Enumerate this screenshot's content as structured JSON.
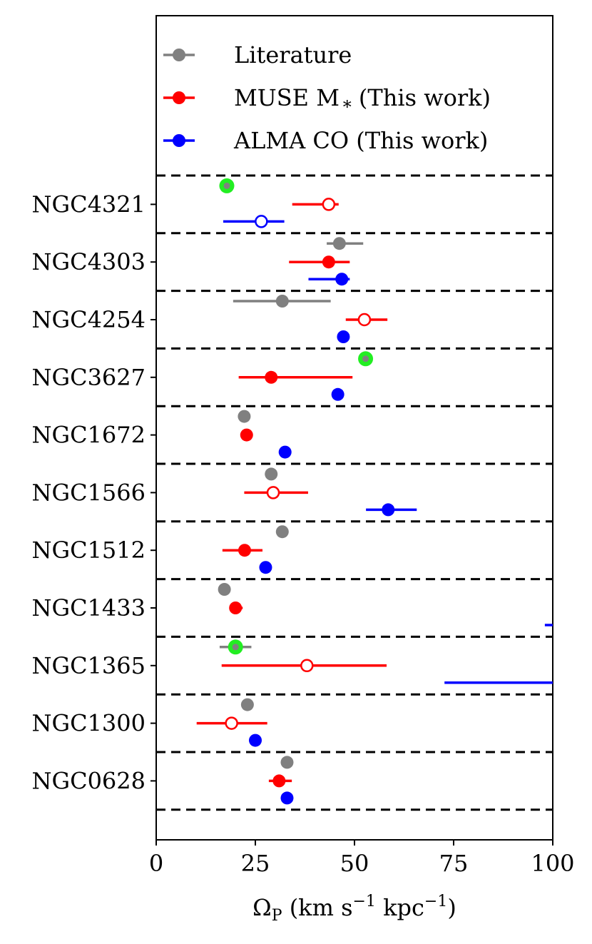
{
  "chart_data": {
    "type": "scatter",
    "xlabel": "Ω_P (km s^-1 kpc^-1)",
    "xlabel_parts": {
      "omega": "Ω",
      "sub": "P",
      "unit_a": "(km s",
      "exp1": "−1",
      "unit_b": " kpc",
      "exp2": "−1",
      "close": ")"
    },
    "xlim": [
      0,
      100
    ],
    "xticks": [
      0,
      25,
      50,
      75,
      100
    ],
    "xtick_labels": [
      "0",
      "25",
      "50",
      "75",
      "100"
    ],
    "galaxies": [
      "NGC4321",
      "NGC4303",
      "NGC4254",
      "NGC3627",
      "NGC1672",
      "NGC1566",
      "NGC1512",
      "NGC1433",
      "NGC1365",
      "NGC1300",
      "NGC0628"
    ],
    "legend_placement": "top",
    "series": [
      {
        "name": "Literature",
        "color": "#808080",
        "points": [
          {
            "galaxy": "NGC4321",
            "x": 17.8,
            "err": [
              0,
              0
            ],
            "filled": true,
            "highlight": true
          },
          {
            "galaxy": "NGC4303",
            "x": 46.2,
            "err": [
              3.2,
              6.0
            ],
            "filled": true
          },
          {
            "galaxy": "NGC4254",
            "x": 31.8,
            "err": [
              12.4,
              12.2
            ],
            "filled": true
          },
          {
            "galaxy": "NGC3627",
            "x": 52.8,
            "err": [
              0,
              0
            ],
            "filled": true,
            "highlight": true
          },
          {
            "galaxy": "NGC1672",
            "x": 22.2,
            "err": [
              0,
              0
            ],
            "filled": true
          },
          {
            "galaxy": "NGC1566",
            "x": 29.0,
            "err": [
              0,
              0
            ],
            "filled": true
          },
          {
            "galaxy": "NGC1512",
            "x": 31.8,
            "err": [
              0,
              0
            ],
            "filled": true
          },
          {
            "galaxy": "NGC1433",
            "x": 17.2,
            "err": [
              0,
              0
            ],
            "filled": true
          },
          {
            "galaxy": "NGC1365",
            "x": 20.0,
            "err": [
              4.0,
              4.0
            ],
            "filled": true,
            "highlight": true
          },
          {
            "galaxy": "NGC1300",
            "x": 23.0,
            "err": [
              0,
              0
            ],
            "filled": true
          },
          {
            "galaxy": "NGC0628",
            "x": 33.0,
            "err": [
              0,
              0
            ],
            "filled": true
          }
        ]
      },
      {
        "name": "MUSE M_* (This work)",
        "color": "#ff0000",
        "points": [
          {
            "galaxy": "NGC4321",
            "x": 43.5,
            "err": [
              9.2,
              2.5
            ],
            "filled": false
          },
          {
            "galaxy": "NGC4303",
            "x": 43.5,
            "err": [
              10.0,
              5.3
            ],
            "filled": true
          },
          {
            "galaxy": "NGC4254",
            "x": 52.5,
            "err": [
              4.7,
              5.8
            ],
            "filled": false
          },
          {
            "galaxy": "NGC3627",
            "x": 29.0,
            "err": [
              8.2,
              20.5
            ],
            "filled": true
          },
          {
            "galaxy": "NGC1672",
            "x": 22.8,
            "err": [
              0,
              0
            ],
            "filled": true
          },
          {
            "galaxy": "NGC1566",
            "x": 29.5,
            "err": [
              7.3,
              8.8
            ],
            "filled": false
          },
          {
            "galaxy": "NGC1512",
            "x": 22.3,
            "err": [
              5.6,
              4.5
            ],
            "filled": true
          },
          {
            "galaxy": "NGC1433",
            "x": 20.0,
            "err": [
              0,
              1.8
            ],
            "filled": true
          },
          {
            "galaxy": "NGC1365",
            "x": 38.0,
            "err": [
              21.5,
              20.1
            ],
            "filled": false
          },
          {
            "galaxy": "NGC1300",
            "x": 19.0,
            "err": [
              8.8,
              9.0
            ],
            "filled": false
          },
          {
            "galaxy": "NGC0628",
            "x": 31.0,
            "err": [
              2.6,
              3.2
            ],
            "filled": true
          }
        ]
      },
      {
        "name": "ALMA CO (This work)",
        "color": "#0000ff",
        "points": [
          {
            "galaxy": "NGC4321",
            "x": 26.5,
            "err": [
              9.6,
              5.8
            ],
            "filled": false
          },
          {
            "galaxy": "NGC4303",
            "x": 46.8,
            "err": [
              8.4,
              2.0
            ],
            "filled": true
          },
          {
            "galaxy": "NGC4254",
            "x": 47.2,
            "err": [
              0,
              0
            ],
            "filled": true
          },
          {
            "galaxy": "NGC3627",
            "x": 45.8,
            "err": [
              1.3,
              0
            ],
            "filled": true
          },
          {
            "galaxy": "NGC1672",
            "x": 32.5,
            "err": [
              0,
              0
            ],
            "filled": true
          },
          {
            "galaxy": "NGC1566",
            "x": 58.5,
            "err": [
              5.6,
              7.2
            ],
            "filled": true
          },
          {
            "galaxy": "NGC1512",
            "x": 27.6,
            "err": [
              0,
              1.4
            ],
            "filled": true
          },
          {
            "galaxy": "NGC1433",
            "x": 105.0,
            "err": [
              7.0,
              7.0
            ],
            "filled": true
          },
          {
            "galaxy": "NGC1365",
            "x": 110.0,
            "err": [
              37.3,
              30.0
            ],
            "filled": true
          },
          {
            "galaxy": "NGC1300",
            "x": 25.0,
            "err": [
              0,
              0
            ],
            "filled": true
          },
          {
            "galaxy": "NGC0628",
            "x": 33.0,
            "err": [
              0,
              0
            ],
            "filled": true
          }
        ]
      }
    ],
    "highlight_color": "#22ee22",
    "separator_style": "dashed"
  }
}
